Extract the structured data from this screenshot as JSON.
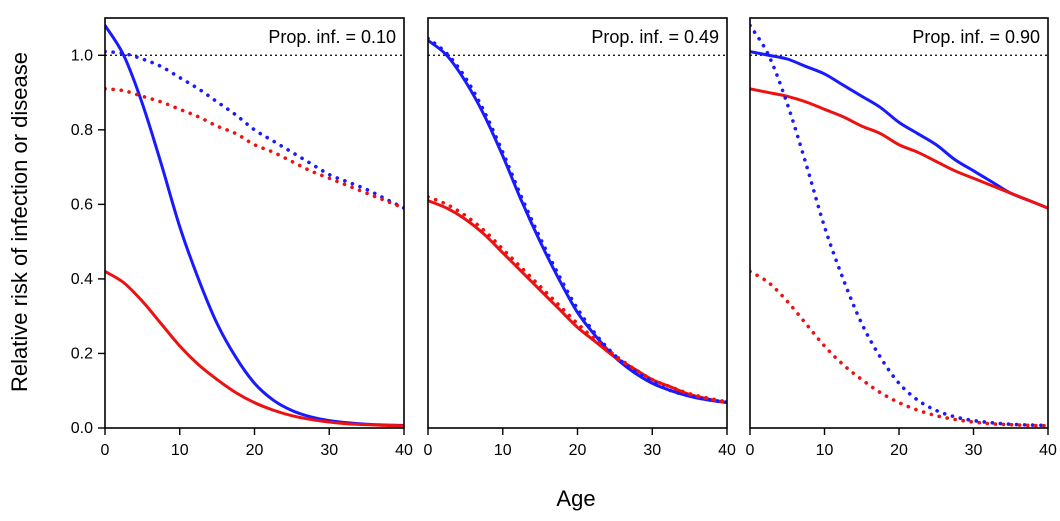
{
  "chart_data": {
    "type": "line",
    "ylabel": "Relative risk of infection or disease",
    "xlabel": "Age",
    "xlim": [
      0,
      40
    ],
    "ylim": [
      0,
      1.1
    ],
    "x_ticks": [
      "0",
      "10",
      "20",
      "30",
      "40"
    ],
    "y_ticks": [
      "0.0",
      "0.2",
      "0.4",
      "0.6",
      "0.8",
      "1.0"
    ],
    "reference_line": {
      "y": 1.0,
      "style": "dotted",
      "color": "#000000"
    },
    "colors": {
      "blue": "#1a1aff",
      "red": "#ee1111"
    },
    "x": [
      0,
      2.5,
      5,
      7.5,
      10,
      12.5,
      15,
      17.5,
      20,
      22.5,
      25,
      27.5,
      30,
      32.5,
      35,
      37.5,
      40
    ],
    "panels": [
      {
        "title": "Prop. inf. = 0.10",
        "series": [
          {
            "color": "blue",
            "style": "solid",
            "values": [
              1.08,
              1.0,
              0.87,
              0.71,
              0.54,
              0.4,
              0.28,
              0.19,
              0.12,
              0.075,
              0.047,
              0.03,
              0.02,
              0.014,
              0.01,
              0.008,
              0.007
            ]
          },
          {
            "color": "red",
            "style": "solid",
            "values": [
              0.42,
              0.39,
              0.34,
              0.28,
              0.22,
              0.17,
              0.13,
              0.095,
              0.068,
              0.048,
              0.033,
              0.023,
              0.016,
              0.011,
              0.009,
              0.007,
              0.006
            ]
          },
          {
            "color": "blue",
            "style": "dotted",
            "values": [
              1.01,
              1.005,
              0.99,
              0.97,
              0.94,
              0.91,
              0.875,
              0.84,
              0.8,
              0.77,
              0.74,
              0.71,
              0.68,
              0.66,
              0.64,
              0.615,
              0.59
            ]
          },
          {
            "color": "red",
            "style": "dotted",
            "values": [
              0.91,
              0.905,
              0.89,
              0.875,
              0.855,
              0.835,
              0.81,
              0.79,
              0.76,
              0.74,
              0.715,
              0.69,
              0.67,
              0.65,
              0.63,
              0.61,
              0.59
            ]
          }
        ]
      },
      {
        "title": "Prop. inf. = 0.49",
        "series": [
          {
            "color": "blue",
            "style": "solid",
            "values": [
              1.04,
              1.0,
              0.93,
              0.84,
              0.73,
              0.61,
              0.5,
              0.4,
              0.31,
              0.245,
              0.19,
              0.15,
              0.12,
              0.1,
              0.085,
              0.075,
              0.068
            ]
          },
          {
            "color": "red",
            "style": "solid",
            "values": [
              0.61,
              0.59,
              0.56,
              0.52,
              0.47,
              0.42,
              0.37,
              0.32,
              0.27,
              0.23,
              0.19,
              0.16,
              0.13,
              0.11,
              0.09,
              0.078,
              0.068
            ]
          },
          {
            "color": "blue",
            "style": "dotted",
            "values": [
              1.045,
              1.005,
              0.94,
              0.85,
              0.74,
              0.62,
              0.51,
              0.41,
              0.32,
              0.25,
              0.195,
              0.155,
              0.125,
              0.1,
              0.086,
              0.076,
              0.069
            ]
          },
          {
            "color": "red",
            "style": "dotted",
            "values": [
              0.62,
              0.6,
              0.57,
              0.53,
              0.48,
              0.43,
              0.38,
              0.33,
              0.28,
              0.235,
              0.195,
              0.16,
              0.13,
              0.11,
              0.092,
              0.08,
              0.07
            ]
          }
        ]
      },
      {
        "title": "Prop. inf. = 0.90",
        "series": [
          {
            "color": "blue",
            "style": "solid",
            "values": [
              1.01,
              1.0,
              0.99,
              0.97,
              0.95,
              0.92,
              0.89,
              0.86,
              0.82,
              0.79,
              0.76,
              0.72,
              0.69,
              0.66,
              0.63,
              0.61,
              0.59
            ]
          },
          {
            "color": "red",
            "style": "solid",
            "values": [
              0.91,
              0.9,
              0.89,
              0.875,
              0.855,
              0.835,
              0.81,
              0.79,
              0.76,
              0.74,
              0.715,
              0.69,
              0.67,
              0.65,
              0.63,
              0.61,
              0.59
            ]
          },
          {
            "color": "blue",
            "style": "dotted",
            "values": [
              1.08,
              1.0,
              0.87,
              0.71,
              0.54,
              0.4,
              0.28,
              0.19,
              0.12,
              0.075,
              0.047,
              0.03,
              0.02,
              0.014,
              0.01,
              0.008,
              0.007
            ]
          },
          {
            "color": "red",
            "style": "dotted",
            "values": [
              0.42,
              0.39,
              0.34,
              0.28,
              0.22,
              0.17,
              0.13,
              0.095,
              0.068,
              0.048,
              0.033,
              0.023,
              0.016,
              0.011,
              0.009,
              0.007,
              0.006
            ]
          }
        ]
      }
    ]
  }
}
